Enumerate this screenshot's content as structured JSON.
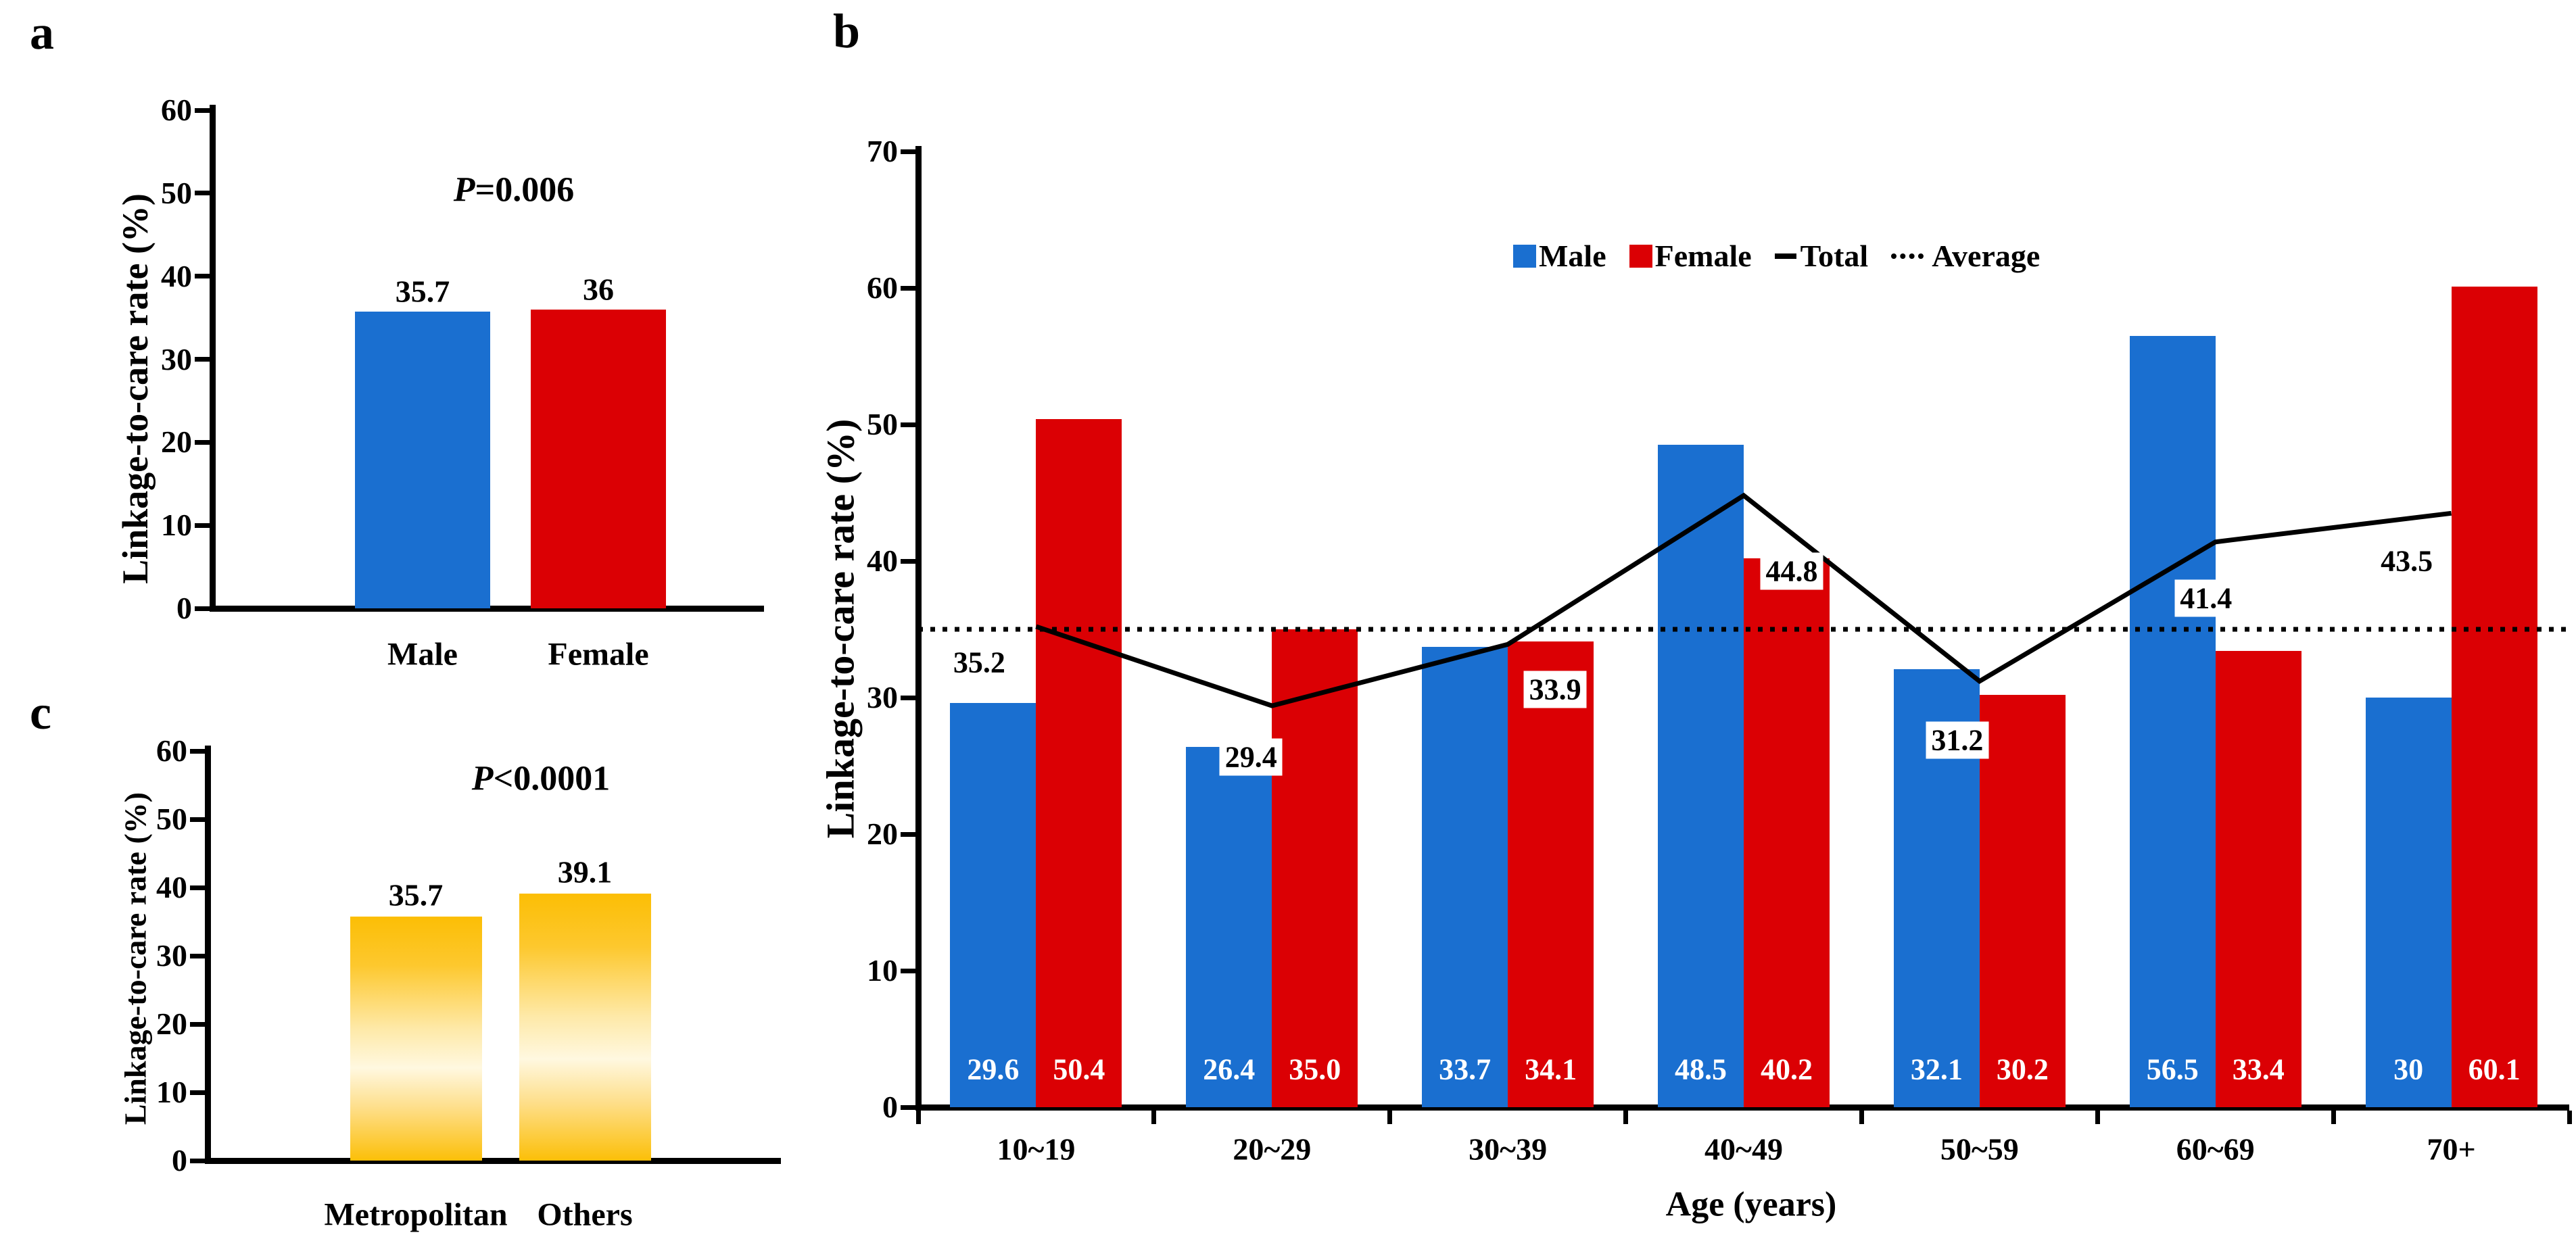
{
  "chart_data": [
    {
      "id": "a",
      "type": "bar",
      "panel_label": "a",
      "p_value": {
        "symbol": "P",
        "rest": "=0.006"
      },
      "ylabel": "Linkage-to-care rate (%)",
      "yticks": [
        0,
        10,
        20,
        30,
        40,
        50,
        60
      ],
      "ylim": [
        0,
        60
      ],
      "grid": false,
      "categories": [
        "Male",
        "Female"
      ],
      "values": [
        35.7,
        36
      ],
      "value_labels": [
        "35.7",
        "36"
      ],
      "bar_colors": [
        "#1A6FD0",
        "#DB0004"
      ]
    },
    {
      "id": "b",
      "type": "bar+line",
      "panel_label": "b",
      "xlabel": "Age (years)",
      "ylabel": "Linkage-to-care rate (%)",
      "yticks": [
        0,
        10,
        20,
        30,
        40,
        50,
        60,
        70
      ],
      "ylim": [
        0,
        70
      ],
      "grid": false,
      "legend_position": "top-center",
      "categories": [
        "10~19",
        "20~29",
        "30~39",
        "40~49",
        "50~59",
        "60~69",
        "70+"
      ],
      "series": [
        {
          "name": "Male",
          "type": "bar",
          "color": "#1A6FD0",
          "values": [
            29.6,
            26.4,
            33.7,
            48.5,
            32.1,
            56.5,
            30
          ],
          "labels": [
            "29.6",
            "26.4",
            "33.7",
            "48.5",
            "32.1",
            "56.5",
            "30"
          ]
        },
        {
          "name": "Female",
          "type": "bar",
          "color": "#DB0004",
          "values": [
            50.4,
            35.0,
            34.1,
            40.2,
            30.2,
            33.4,
            60.1
          ],
          "labels": [
            "50.4",
            "35.0",
            "34.1",
            "40.2",
            "30.2",
            "33.4",
            "60.1"
          ]
        },
        {
          "name": "Total",
          "type": "line",
          "color": "#000000",
          "values": [
            35.2,
            29.4,
            33.9,
            44.8,
            31.2,
            41.4,
            43.5
          ],
          "labels": [
            "35.2",
            "29.4",
            "33.9",
            "44.8",
            "31.2",
            "41.4",
            "43.5"
          ]
        },
        {
          "name": "Average",
          "type": "hline",
          "color": "#000000",
          "value": 35
        }
      ]
    },
    {
      "id": "c",
      "type": "bar",
      "panel_label": "c",
      "p_value": {
        "symbol": "P",
        "rest": "<0.0001"
      },
      "ylabel": "Linkage-to-care rate (%)",
      "yticks": [
        0,
        10,
        20,
        30,
        40,
        50,
        60
      ],
      "ylim": [
        0,
        60
      ],
      "grid": false,
      "categories": [
        "Metropolitan",
        "Others"
      ],
      "values": [
        35.7,
        39.1
      ],
      "value_labels": [
        "35.7",
        "39.1"
      ],
      "bar_style": "gold-gradient",
      "gradient_colors": {
        "top": "#FCBE05",
        "middle_light": "#FFF8E0",
        "bottom": "#FCBF08"
      }
    }
  ]
}
